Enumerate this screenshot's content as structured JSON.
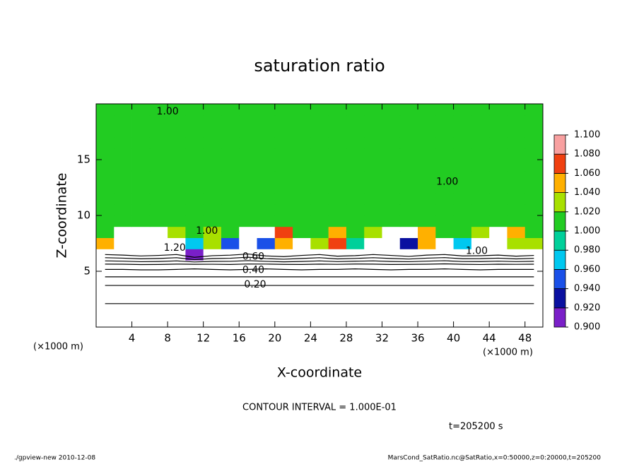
{
  "chart_data": {
    "type": "contour",
    "title": "saturation ratio",
    "xlabel": "X-coordinate",
    "ylabel": "Z-coordinate",
    "x_unit": "(×1000 m)",
    "y_unit": "(×1000 m)",
    "contour_note": "CONTOUR INTERVAL = 1.000E-01",
    "time_label": "t=205200 s",
    "footer_left": "./gpview-new  2010-12-08",
    "footer_right": "MarsCond_SatRatio.nc@SatRatio,x=0:50000,z=0:20000,t=205200",
    "xlim": [
      0,
      50
    ],
    "ylim": [
      0,
      20
    ],
    "xticks": [
      4,
      8,
      12,
      16,
      20,
      24,
      28,
      32,
      36,
      40,
      44,
      48
    ],
    "yticks": [
      5,
      10,
      15
    ],
    "x": [
      1,
      3,
      5,
      7,
      9,
      11,
      13,
      15,
      17,
      19,
      21,
      23,
      25,
      27,
      29,
      31,
      33,
      35,
      37,
      39,
      41,
      43,
      45,
      47,
      49
    ],
    "y": [
      0.5,
      1.5,
      2.5,
      3.5,
      4.5,
      5.5,
      6.5,
      7.5,
      8.5,
      9.5,
      10.5,
      11.5,
      12.5,
      13.5,
      14.5,
      15.5,
      16.5,
      17.5,
      18.5,
      19.5
    ],
    "z": [
      [
        0.03,
        0.03,
        0.03,
        0.03,
        0.03,
        0.03,
        0.03,
        0.03,
        0.03,
        0.03,
        0.03,
        0.03,
        0.03,
        0.03,
        0.03,
        0.03,
        0.03,
        0.03,
        0.03,
        0.03,
        0.03,
        0.03,
        0.03,
        0.03,
        0.03
      ],
      [
        0.07,
        0.07,
        0.07,
        0.07,
        0.07,
        0.07,
        0.07,
        0.07,
        0.07,
        0.07,
        0.07,
        0.07,
        0.07,
        0.07,
        0.07,
        0.07,
        0.07,
        0.07,
        0.07,
        0.07,
        0.07,
        0.07,
        0.07,
        0.07,
        0.07
      ],
      [
        0.12,
        0.12,
        0.12,
        0.12,
        0.12,
        0.12,
        0.12,
        0.12,
        0.12,
        0.12,
        0.12,
        0.12,
        0.12,
        0.12,
        0.12,
        0.12,
        0.12,
        0.12,
        0.12,
        0.12,
        0.12,
        0.12,
        0.12,
        0.12,
        0.12
      ],
      [
        0.17,
        0.17,
        0.17,
        0.17,
        0.17,
        0.17,
        0.17,
        0.17,
        0.17,
        0.17,
        0.17,
        0.17,
        0.17,
        0.17,
        0.17,
        0.17,
        0.17,
        0.17,
        0.17,
        0.17,
        0.17,
        0.17,
        0.17,
        0.17,
        0.17
      ],
      [
        0.3,
        0.3,
        0.3,
        0.3,
        0.3,
        0.3,
        0.3,
        0.3,
        0.3,
        0.3,
        0.3,
        0.3,
        0.3,
        0.3,
        0.3,
        0.3,
        0.3,
        0.3,
        0.3,
        0.3,
        0.3,
        0.3,
        0.3,
        0.3,
        0.3
      ],
      [
        0.45,
        0.45,
        0.46,
        0.46,
        0.45,
        0.44,
        0.45,
        0.46,
        0.45,
        0.44,
        0.45,
        0.46,
        0.45,
        0.45,
        0.44,
        0.45,
        0.46,
        0.45,
        0.45,
        0.44,
        0.45,
        0.46,
        0.45,
        0.45,
        0.45
      ],
      [
        0.8,
        0.82,
        0.85,
        0.83,
        0.8,
        0.92,
        0.84,
        0.82,
        0.78,
        0.85,
        0.88,
        0.83,
        0.8,
        0.86,
        0.84,
        0.8,
        0.83,
        0.87,
        0.82,
        0.8,
        0.85,
        0.84,
        0.82,
        0.86,
        0.83
      ],
      [
        1.05,
        1.2,
        1.2,
        1.2,
        1.15,
        0.97,
        1.03,
        0.95,
        1.2,
        0.96,
        1.06,
        1.12,
        1.04,
        1.07,
        0.99,
        1.12,
        1.2,
        0.94,
        1.05,
        1.15,
        0.98,
        1.2,
        1.2,
        1.04,
        1.03
      ],
      [
        1.01,
        1.2,
        1.15,
        1.12,
        1.03,
        1.01,
        1.04,
        1.02,
        1.2,
        1.15,
        1.07,
        1.01,
        1.01,
        1.05,
        1.02,
        1.03,
        1.12,
        1.15,
        1.06,
        1.02,
        1.01,
        1.04,
        1.12,
        1.06,
        1.01
      ],
      [
        1.01,
        1.01,
        1.01,
        1.01,
        1.01,
        1.01,
        1.01,
        1.01,
        1.01,
        1.01,
        1.01,
        1.01,
        1.01,
        1.01,
        1.01,
        1.01,
        1.01,
        1.01,
        1.01,
        1.01,
        1.01,
        1.01,
        1.01,
        1.01,
        1.01
      ],
      [
        1.01,
        1.01,
        1.01,
        1.01,
        1.01,
        1.01,
        1.01,
        1.01,
        1.01,
        1.01,
        1.01,
        1.01,
        1.01,
        1.01,
        1.01,
        1.01,
        1.01,
        1.01,
        1.01,
        1.01,
        1.01,
        1.01,
        1.01,
        1.01,
        1.01
      ],
      [
        1.01,
        1.01,
        1.01,
        1.01,
        1.01,
        1.01,
        1.01,
        1.01,
        1.01,
        1.01,
        1.01,
        1.01,
        1.01,
        1.01,
        1.01,
        1.01,
        1.01,
        1.01,
        1.01,
        1.01,
        1.01,
        1.01,
        1.01,
        1.01,
        1.01
      ],
      [
        1.01,
        1.01,
        1.01,
        1.01,
        1.01,
        1.01,
        1.01,
        1.01,
        1.01,
        1.01,
        1.01,
        1.01,
        1.01,
        1.01,
        1.01,
        1.01,
        1.01,
        1.01,
        1.01,
        1.01,
        1.01,
        1.01,
        1.01,
        1.01,
        1.01
      ],
      [
        1.01,
        1.01,
        1.01,
        1.01,
        1.01,
        1.01,
        1.01,
        1.01,
        1.01,
        1.01,
        1.01,
        1.01,
        1.01,
        1.01,
        1.01,
        1.01,
        1.01,
        1.01,
        1.01,
        1.01,
        1.01,
        1.01,
        1.01,
        1.01,
        1.01
      ],
      [
        1.01,
        1.01,
        1.01,
        1.01,
        1.01,
        1.01,
        1.01,
        1.01,
        1.01,
        1.01,
        1.01,
        1.01,
        1.01,
        1.01,
        1.01,
        1.01,
        1.01,
        1.01,
        1.01,
        1.01,
        1.01,
        1.01,
        1.01,
        1.01,
        1.01
      ],
      [
        1.01,
        1.01,
        1.01,
        1.01,
        1.01,
        1.01,
        1.01,
        1.01,
        1.01,
        1.01,
        1.01,
        1.01,
        1.01,
        1.01,
        1.01,
        1.01,
        1.01,
        1.01,
        1.01,
        1.01,
        1.01,
        1.01,
        1.01,
        1.01,
        1.01
      ],
      [
        1.01,
        1.01,
        1.01,
        1.01,
        1.01,
        1.01,
        1.01,
        1.01,
        1.01,
        1.01,
        1.01,
        1.01,
        1.01,
        1.01,
        1.01,
        1.01,
        1.01,
        1.01,
        1.01,
        1.01,
        1.01,
        1.01,
        1.01,
        1.01,
        1.01
      ],
      [
        1.01,
        1.01,
        1.01,
        1.01,
        1.01,
        1.01,
        1.01,
        1.01,
        1.01,
        1.01,
        1.01,
        1.01,
        1.01,
        1.01,
        1.01,
        1.01,
        1.01,
        1.01,
        1.01,
        1.01,
        1.01,
        1.01,
        1.01,
        1.01,
        1.01
      ],
      [
        1.01,
        1.01,
        1.01,
        1.01,
        1.01,
        1.01,
        1.01,
        1.01,
        1.01,
        1.01,
        1.01,
        1.01,
        1.01,
        1.01,
        1.01,
        1.01,
        1.01,
        1.01,
        1.01,
        1.01,
        1.01,
        1.01,
        1.01,
        1.01,
        1.01
      ],
      [
        1.01,
        1.01,
        1.01,
        1.01,
        1.01,
        1.01,
        1.01,
        1.01,
        1.01,
        1.01,
        1.01,
        1.01,
        1.01,
        1.01,
        1.01,
        1.01,
        1.01,
        1.01,
        1.01,
        1.01,
        1.01,
        1.01,
        1.01,
        1.01,
        1.01
      ]
    ],
    "contour_levels": [
      0.1,
      0.2,
      0.3,
      0.4,
      0.5,
      0.6,
      0.7,
      0.8
    ],
    "colorbar": {
      "levels": [
        {
          "value": 0.9,
          "label": "0.900"
        },
        {
          "value": 0.92,
          "label": "0.920"
        },
        {
          "value": 0.94,
          "label": "0.940"
        },
        {
          "value": 0.96,
          "label": "0.960"
        },
        {
          "value": 0.98,
          "label": "0.980"
        },
        {
          "value": 1.0,
          "label": "1.000"
        },
        {
          "value": 1.02,
          "label": "1.020"
        },
        {
          "value": 1.04,
          "label": "1.040"
        },
        {
          "value": 1.06,
          "label": "1.060"
        },
        {
          "value": 1.08,
          "label": "1.080"
        },
        {
          "value": 1.1,
          "label": "1.100"
        }
      ],
      "colors": [
        "#7a1fc8",
        "#0a10a0",
        "#1a50e8",
        "#00c8f0",
        "#00d09a",
        "#22cc22",
        "#a8e000",
        "#ffb000",
        "#f04010",
        "#f8a0a0"
      ]
    },
    "annotations": [
      {
        "text": "1.00",
        "x": 8,
        "y": 19.3
      },
      {
        "text": "1.00",
        "x": 39.3,
        "y": 13
      },
      {
        "text": "1.00",
        "x": 12.4,
        "y": 8.6
      },
      {
        "text": "1.20",
        "x": 8.8,
        "y": 7.1
      },
      {
        "text": "1.00",
        "x": 42.6,
        "y": 6.8
      },
      {
        "text": "0.60",
        "x": 17.6,
        "y": 6.3
      },
      {
        "text": "0.40",
        "x": 17.6,
        "y": 5.1
      },
      {
        "text": "0.20",
        "x": 17.8,
        "y": 3.8
      }
    ]
  }
}
